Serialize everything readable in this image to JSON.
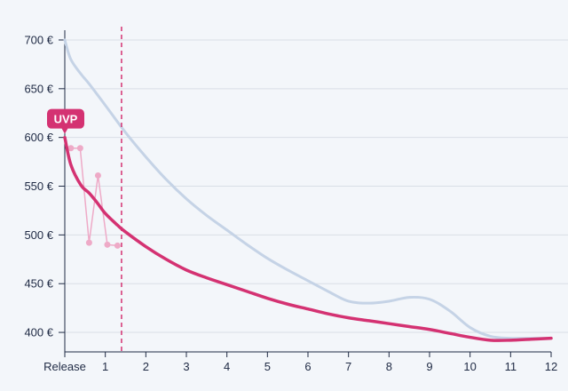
{
  "chart_data": {
    "type": "line",
    "title": "",
    "xlabel": "",
    "ylabel": "",
    "xlim": [
      0,
      12
    ],
    "ylim": [
      380,
      710
    ],
    "x_ticks": [
      {
        "v": 0,
        "label": "Release"
      },
      {
        "v": 1,
        "label": "1"
      },
      {
        "v": 2,
        "label": "2"
      },
      {
        "v": 3,
        "label": "3"
      },
      {
        "v": 4,
        "label": "4"
      },
      {
        "v": 5,
        "label": "5"
      },
      {
        "v": 6,
        "label": "6"
      },
      {
        "v": 7,
        "label": "7"
      },
      {
        "v": 8,
        "label": "8"
      },
      {
        "v": 9,
        "label": "9"
      },
      {
        "v": 10,
        "label": "10"
      },
      {
        "v": 11,
        "label": "11"
      },
      {
        "v": 12,
        "label": "12"
      }
    ],
    "y_ticks": [
      {
        "v": 400,
        "label": "400 €"
      },
      {
        "v": 450,
        "label": "450 €"
      },
      {
        "v": 500,
        "label": "500 €"
      },
      {
        "v": 550,
        "label": "550 €"
      },
      {
        "v": 600,
        "label": "600 €"
      },
      {
        "v": 650,
        "label": "650 €"
      },
      {
        "v": 700,
        "label": "700 €"
      }
    ],
    "grid": true,
    "colors": {
      "upper": "#c5d3e6",
      "main": "#d43272",
      "points": "#eeaac7",
      "marker": "#d43272"
    },
    "series": [
      {
        "key": "upper",
        "x": [
          0,
          0.15,
          0.4,
          0.6,
          1.0,
          1.5,
          2.0,
          2.5,
          3.0,
          3.5,
          4.0,
          4.5,
          5.0,
          5.5,
          6.0,
          6.5,
          7.0,
          7.5,
          8.0,
          8.5,
          9.0,
          9.5,
          10.0,
          10.5,
          11.0,
          11.5,
          12.0
        ],
        "y": [
          700,
          680,
          665,
          655,
          633,
          605,
          580,
          557,
          537,
          520,
          505,
          490,
          476,
          464,
          453,
          442,
          432,
          430,
          432,
          436,
          434,
          422,
          405,
          396,
          394,
          394,
          394
        ]
      },
      {
        "key": "main",
        "x": [
          0,
          0.15,
          0.4,
          0.6,
          0.8,
          1.0,
          1.3,
          1.5,
          2.0,
          2.5,
          3.0,
          3.5,
          4.0,
          4.5,
          5.0,
          5.5,
          6.0,
          6.5,
          7.0,
          7.5,
          8.0,
          8.5,
          9.0,
          9.5,
          10.0,
          10.5,
          11.0,
          11.5,
          12.0
        ],
        "y": [
          600,
          572,
          551,
          543,
          533,
          522,
          510,
          503,
          488,
          475,
          464,
          456,
          449,
          442,
          435,
          429,
          424,
          419,
          415,
          412,
          409,
          406,
          403,
          399,
          395,
          392,
          392,
          393,
          394
        ]
      },
      {
        "key": "points",
        "x": [
          0.15,
          0.38,
          0.6,
          0.82,
          1.05,
          1.3
        ],
        "y": [
          589,
          589,
          492,
          561,
          490,
          489
        ]
      }
    ],
    "marker_line_x": 1.4,
    "annotation": {
      "text": "UVP",
      "x": 0,
      "y": 600
    }
  }
}
